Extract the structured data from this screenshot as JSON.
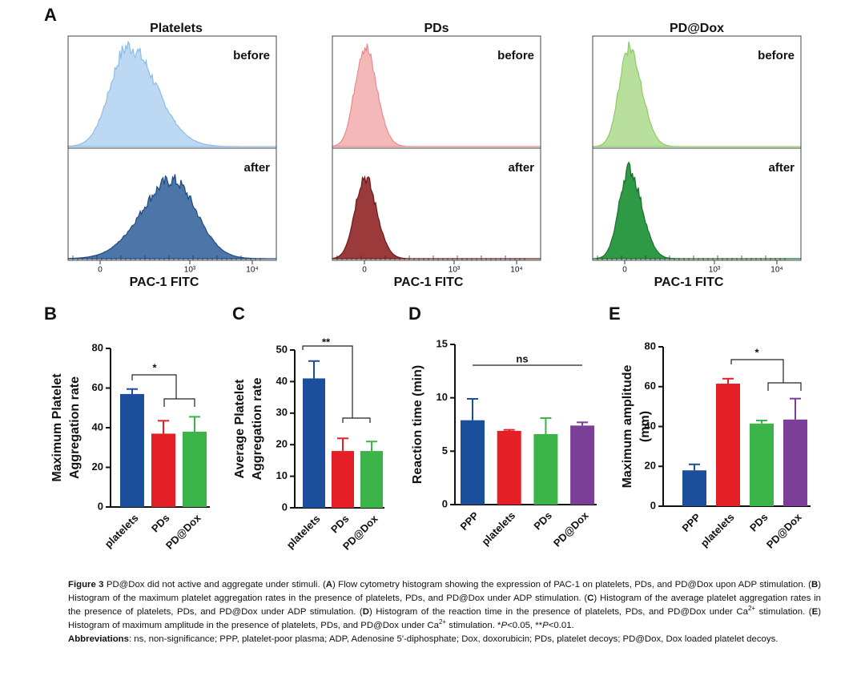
{
  "panel_a": {
    "label": "A",
    "x_label": "PAC-1 FITC",
    "row_labels": [
      "before",
      "after"
    ],
    "panels": [
      {
        "title": "Platelets"
      },
      {
        "title": "PDs"
      },
      {
        "title": "PD@Dox"
      }
    ],
    "xticks": [
      {
        "value": 0,
        "label": "0"
      },
      {
        "value": 1000,
        "label": "10³"
      },
      {
        "value": 10000,
        "label": "10⁴"
      }
    ]
  },
  "chart_data": [
    {
      "type": "bar",
      "label": "B",
      "ylabel": [
        "Maximum Platelet",
        "Aggregation rate"
      ],
      "categories": [
        "platelets",
        "PDs",
        "PD@Dox"
      ],
      "values": [
        57,
        37,
        38
      ],
      "errors": [
        2.5,
        6.5,
        7.5
      ],
      "colors": [
        "#1b4f9c",
        "#e41f26",
        "#3bb44a"
      ],
      "ylim": [
        0,
        80
      ],
      "yticks": [
        0,
        20,
        40,
        60,
        80
      ],
      "annotation": "*"
    },
    {
      "type": "bar",
      "label": "C",
      "ylabel": [
        "Average Platelet",
        "Aggregation rate"
      ],
      "categories": [
        "platelets",
        "PDs",
        "PD@Dox"
      ],
      "values": [
        41,
        18,
        18
      ],
      "errors": [
        5.5,
        4,
        3
      ],
      "colors": [
        "#1b4f9c",
        "#e41f26",
        "#3bb44a"
      ],
      "ylim": [
        0,
        50
      ],
      "yticks": [
        0,
        10,
        20,
        30,
        40,
        50
      ],
      "annotation": "**"
    },
    {
      "type": "bar",
      "label": "D",
      "ylabel": [
        "Reaction time (min)"
      ],
      "categories": [
        "PPP",
        "platelets",
        "PDs",
        "PD@Dox"
      ],
      "values": [
        7.9,
        6.9,
        6.6,
        7.4
      ],
      "errors": [
        2,
        0.1,
        1.5,
        0.3
      ],
      "colors": [
        "#1b4f9c",
        "#e41f26",
        "#3bb44a",
        "#7b3f98"
      ],
      "ylim": [
        0,
        15
      ],
      "yticks": [
        0,
        5,
        10,
        15
      ],
      "annotation": "ns"
    },
    {
      "type": "bar",
      "label": "E",
      "ylabel": [
        "Maximum amplitude",
        "(mm)"
      ],
      "categories": [
        "PPP",
        "platelets",
        "PDs",
        "PD@Dox"
      ],
      "values": [
        18,
        61.5,
        41.5,
        43.5
      ],
      "errors": [
        3,
        2.5,
        1.5,
        10.5
      ],
      "colors": [
        "#1b4f9c",
        "#e41f26",
        "#3bb44a",
        "#7b3f98"
      ],
      "ylim": [
        0,
        80
      ],
      "yticks": [
        0,
        20,
        40,
        60,
        80
      ],
      "annotation": "*"
    }
  ],
  "caption": {
    "parts": [
      "Figure 3",
      " PD@Dox did not active and aggregate under stimuli. (",
      "A",
      ") Flow cytometry histogram showing the expression of PAC-1 on platelets, PDs, and PD@Dox upon ADP stimulation. (",
      "B",
      ") Histogram of the maximum platelet aggregation rates in the presence of platelets, PDs, and PD@Dox under ADP stimulation. (",
      "C",
      ") Histogram of the average platelet aggregation rates in the presence of platelets, PDs, and PD@Dox under ADP stimulation. (",
      "D",
      ") Histogram of the reaction time in the presence of platelets, PDs, and PD@Dox under Ca",
      "2+",
      " stimulation. (",
      "E",
      ") Histogram of maximum amplitude in the presence of platelets, PDs, and PD@Dox under Ca",
      "2+",
      " stimulation. *",
      "P",
      "<0.05, **",
      "P",
      "<0.01."
    ],
    "abbreviations_label": "Abbreviations",
    "abbreviations": ": ns, non-significance; PPP, platelet-poor plasma; ADP, Adenosine 5'-diphosphate; Dox, doxorubicin; PDs, platelet decoys; PD@Dox, Dox loaded platelet decoys."
  }
}
